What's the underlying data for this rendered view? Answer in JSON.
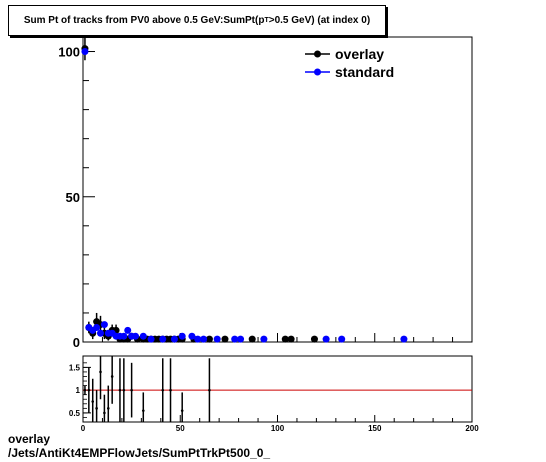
{
  "title": {
    "before": "Sum Pt of tracks from PV0 above 0.5 GeV:SumPt(p",
    "sub": "T",
    "after": ">0.5 GeV) (at index 0)"
  },
  "footer": {
    "line1": "overlay",
    "line2": "/Jets/AntiKt4EMPFlowJets/SumPtTrkPt500_0_"
  },
  "colors": {
    "overlay": "#000000",
    "standard": "#0000ff",
    "ratio_line": "#cc0000"
  },
  "chart_data": [
    {
      "type": "scatter",
      "title": "Sum Pt of tracks from PV0 above 0.5 GeV:SumPt(pT>0.5 GeV) (at index 0)",
      "xlim": [
        0,
        200
      ],
      "ylim": [
        0,
        105
      ],
      "ytick_labels": [
        "0",
        "50",
        "100"
      ],
      "legend_position": "top-right",
      "grid": false,
      "series": [
        {
          "name": "overlay",
          "color": "#000000",
          "points": [
            {
              "x": 1,
              "y": 101,
              "err": 4
            },
            {
              "x": 3,
              "y": 5,
              "err": 2
            },
            {
              "x": 5,
              "y": 3,
              "err": 2
            },
            {
              "x": 7,
              "y": 7,
              "err": 3
            },
            {
              "x": 9,
              "y": 6,
              "err": 3
            },
            {
              "x": 11,
              "y": 3,
              "err": 2
            },
            {
              "x": 13,
              "y": 2,
              "err": 1.5
            },
            {
              "x": 15,
              "y": 4,
              "err": 2
            },
            {
              "x": 17,
              "y": 4,
              "err": 2
            },
            {
              "x": 19,
              "y": 1,
              "err": 1
            },
            {
              "x": 21,
              "y": 1,
              "err": 1
            },
            {
              "x": 23,
              "y": 1,
              "err": 1
            },
            {
              "x": 25,
              "y": 2,
              "err": 1
            },
            {
              "x": 28,
              "y": 1,
              "err": 1
            },
            {
              "x": 31,
              "y": 1,
              "err": 1
            },
            {
              "x": 33,
              "y": 1,
              "err": 1
            },
            {
              "x": 35,
              "y": 1,
              "err": 1
            },
            {
              "x": 37,
              "y": 1,
              "err": 1
            },
            {
              "x": 39,
              "y": 1,
              "err": 1
            },
            {
              "x": 41,
              "y": 1,
              "err": 1
            },
            {
              "x": 43,
              "y": 1,
              "err": 1
            },
            {
              "x": 45,
              "y": 1,
              "err": 1
            },
            {
              "x": 47,
              "y": 1,
              "err": 1
            },
            {
              "x": 49,
              "y": 1,
              "err": 1
            },
            {
              "x": 51,
              "y": 1,
              "err": 1
            },
            {
              "x": 57,
              "y": 1,
              "err": 1
            },
            {
              "x": 65,
              "y": 1,
              "err": 1
            },
            {
              "x": 73,
              "y": 1,
              "err": 1
            },
            {
              "x": 87,
              "y": 1,
              "err": 1
            },
            {
              "x": 104,
              "y": 1,
              "err": 1
            },
            {
              "x": 107,
              "y": 1,
              "err": 1
            },
            {
              "x": 119,
              "y": 1,
              "err": 1
            }
          ]
        },
        {
          "name": "standard",
          "color": "#0000ff",
          "points": [
            {
              "x": 1,
              "y": 100
            },
            {
              "x": 3,
              "y": 5
            },
            {
              "x": 5,
              "y": 4
            },
            {
              "x": 7,
              "y": 5
            },
            {
              "x": 9,
              "y": 3
            },
            {
              "x": 11,
              "y": 6
            },
            {
              "x": 13,
              "y": 3
            },
            {
              "x": 15,
              "y": 3
            },
            {
              "x": 17,
              "y": 2
            },
            {
              "x": 19,
              "y": 2
            },
            {
              "x": 21,
              "y": 2
            },
            {
              "x": 23,
              "y": 4
            },
            {
              "x": 25,
              "y": 2
            },
            {
              "x": 27,
              "y": 2
            },
            {
              "x": 31,
              "y": 2
            },
            {
              "x": 35,
              "y": 1
            },
            {
              "x": 41,
              "y": 1
            },
            {
              "x": 47,
              "y": 1
            },
            {
              "x": 51,
              "y": 2
            },
            {
              "x": 56,
              "y": 2
            },
            {
              "x": 59,
              "y": 1
            },
            {
              "x": 62,
              "y": 1
            },
            {
              "x": 69,
              "y": 1
            },
            {
              "x": 78,
              "y": 1
            },
            {
              "x": 81,
              "y": 1
            },
            {
              "x": 93,
              "y": 1
            },
            {
              "x": 125,
              "y": 1
            },
            {
              "x": 133,
              "y": 1
            },
            {
              "x": 165,
              "y": 1
            }
          ]
        }
      ]
    },
    {
      "type": "scatter",
      "xlim": [
        0,
        200
      ],
      "ylim": [
        0.3,
        1.75
      ],
      "xtick_labels": [
        "0",
        "50",
        "100",
        "150",
        "200"
      ],
      "ytick_labels": [
        "0.5",
        "1",
        "1.5"
      ],
      "reference_line": 1,
      "series": [
        {
          "name": "",
          "color": "#000000",
          "points": [
            {
              "x": 1,
              "y": 1.0,
              "err": 0.1
            },
            {
              "x": 3,
              "y": 1.0,
              "err": 0.5
            },
            {
              "x": 5,
              "y": 0.75,
              "err": 0.5
            },
            {
              "x": 7,
              "y": 0.6,
              "err": 0.4
            },
            {
              "x": 9,
              "y": 1.4,
              "err": 0.6
            },
            {
              "x": 11,
              "y": 0.5,
              "err": 0.4
            },
            {
              "x": 13,
              "y": 0.6,
              "err": 0.5
            },
            {
              "x": 15,
              "y": 1.3,
              "err": 0.6
            },
            {
              "x": 19,
              "y": 1.0,
              "err": 0.7
            },
            {
              "x": 21,
              "y": 1.0,
              "err": 0.7
            },
            {
              "x": 25,
              "y": 1.0,
              "err": 0.6
            },
            {
              "x": 31,
              "y": 0.55,
              "err": 0.4
            },
            {
              "x": 41,
              "y": 1.0,
              "err": 0.7
            },
            {
              "x": 45,
              "y": 1.0,
              "err": 0.7
            },
            {
              "x": 51,
              "y": 0.55,
              "err": 0.4
            },
            {
              "x": 65,
              "y": 1.0,
              "err": 0.7
            }
          ]
        }
      ]
    }
  ]
}
